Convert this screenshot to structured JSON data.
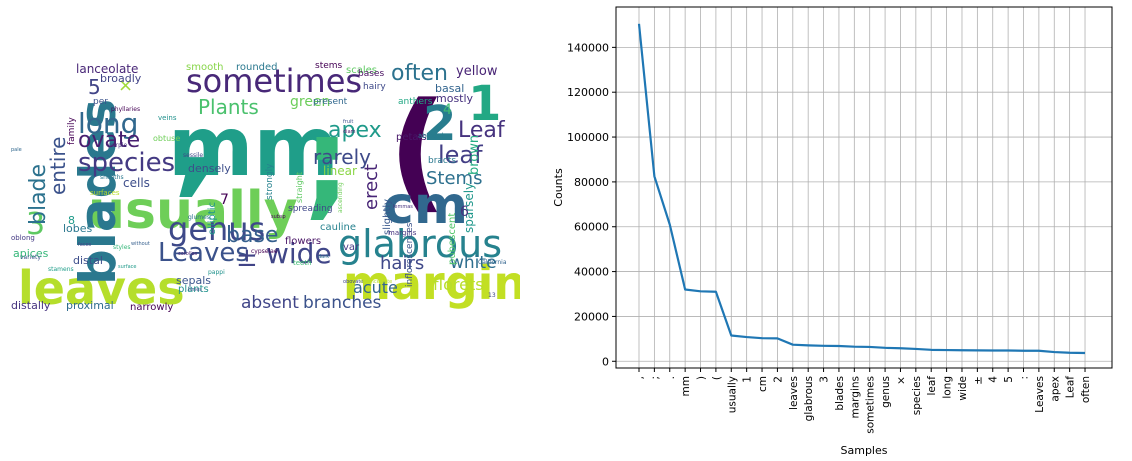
{
  "wordcloud": {
    "words": [
      {
        "text": ",",
        "color": "#1fa088"
      },
      {
        "text": "mm",
        "color": "#1f9e89"
      },
      {
        "text": ";",
        "color": "#35b779"
      },
      {
        "text": "(",
        "color": "#440154"
      },
      {
        "text": "usually",
        "color": "#6ece58"
      },
      {
        "text": "cm",
        "color": "#31688e"
      },
      {
        "text": "leaves",
        "color": "#b5de2b"
      },
      {
        "text": "margins",
        "color": "#c2df23"
      },
      {
        "text": "glabrous",
        "color": "#26828e"
      },
      {
        "text": "blades",
        "color": "#2a788e"
      },
      {
        "text": "sometimes",
        "color": "#482878"
      },
      {
        "text": "genus",
        "color": "#3e4989"
      },
      {
        "text": "2",
        "color": "#287d8e"
      },
      {
        "text": "1",
        "color": "#22a884"
      },
      {
        "text": "species",
        "color": "#443a83"
      },
      {
        "text": "Leaves",
        "color": "#3b528b"
      },
      {
        "text": "wide",
        "color": "#404688"
      },
      {
        "text": "often",
        "color": "#2c728e"
      },
      {
        "text": "long",
        "color": "#31688e"
      },
      {
        "text": "3",
        "color": "#5ec962"
      },
      {
        "text": "apex",
        "color": "#1f9a8a"
      },
      {
        "text": "leaf",
        "color": "#433e85"
      },
      {
        "text": "Leaf",
        "color": "#46327e"
      },
      {
        "text": "±",
        "color": "#414487"
      },
      {
        "text": "rarely",
        "color": "#3e4a89"
      },
      {
        "text": "base",
        "color": "#355f8d"
      },
      {
        "text": "Stems",
        "color": "#2d708e"
      },
      {
        "text": "ovate",
        "color": "#481f70"
      },
      {
        "text": "Plants",
        "color": "#4ac16d"
      },
      {
        "text": "entire",
        "color": "#3b528b"
      },
      {
        "text": "blade",
        "color": "#2c728e"
      },
      {
        "text": "erect",
        "color": "#482576"
      },
      {
        "text": "hairs",
        "color": "#3f4889"
      },
      {
        "text": "white",
        "color": "#2e6e8e"
      },
      {
        "text": "absent",
        "color": "#404588"
      },
      {
        "text": "branches",
        "color": "#3b528b"
      },
      {
        "text": "acute",
        "color": "#32658e"
      },
      {
        "text": "florets",
        "color": "#b8de29"
      },
      {
        "text": "green",
        "color": "#6ccd5a"
      },
      {
        "text": "×",
        "color": "#a0da39"
      },
      {
        "text": "5",
        "color": "#414487"
      },
      {
        "text": "4",
        "color": "#3fbc73"
      },
      {
        "text": "yellow",
        "color": "#482475"
      },
      {
        "text": "brown",
        "color": "#25ac82"
      },
      {
        "text": "lanceolate",
        "color": "#482677"
      },
      {
        "text": "cells",
        "color": "#3d4d8a"
      },
      {
        "text": "lobes",
        "color": "#2a778e"
      },
      {
        "text": "distal",
        "color": "#3d4e8a"
      },
      {
        "text": "apices",
        "color": "#35b779"
      },
      {
        "text": "sepals",
        "color": "#3a548c"
      },
      {
        "text": "proximal",
        "color": "#2f6c8e"
      },
      {
        "text": "distally",
        "color": "#46337f"
      },
      {
        "text": "narrowly",
        "color": "#440154"
      },
      {
        "text": "flowers",
        "color": "#471164"
      },
      {
        "text": "cauline",
        "color": "#26818e"
      },
      {
        "text": "var",
        "color": "#443983"
      },
      {
        "text": "mostly",
        "color": "#46307e"
      },
      {
        "text": "basal",
        "color": "#32648e"
      },
      {
        "text": "densely",
        "color": "#3d4e8a"
      },
      {
        "text": "broadly",
        "color": "#414487"
      },
      {
        "text": "smooth",
        "color": "#87d549"
      },
      {
        "text": "rounded",
        "color": "#2a788e"
      },
      {
        "text": "scales",
        "color": "#5ec962"
      },
      {
        "text": "stems",
        "color": "#440154"
      },
      {
        "text": "sparsely",
        "color": "#1f978b"
      },
      {
        "text": "pubescent",
        "color": "#52c569"
      },
      {
        "text": "slightly",
        "color": "#38588c"
      },
      {
        "text": "elliptic",
        "color": "#1f968b"
      },
      {
        "text": "linear",
        "color": "#8bd646"
      },
      {
        "text": "plants",
        "color": "#20928c"
      },
      {
        "text": "7",
        "color": "#440154"
      },
      {
        "text": "8",
        "color": "#1e9b8a"
      },
      {
        "text": "6",
        "color": "#46337f"
      },
      {
        "text": "inflorescences",
        "color": "#3b528b"
      },
      {
        "text": "petals",
        "color": "#48186a"
      },
      {
        "text": "bracts",
        "color": "#2a788e"
      },
      {
        "text": "anthers",
        "color": "#22a884"
      },
      {
        "text": "hairy",
        "color": "#3e4989"
      },
      {
        "text": "present",
        "color": "#31688e"
      },
      {
        "text": "bases",
        "color": "#470d60"
      },
      {
        "text": "per",
        "color": "#3b528b"
      },
      {
        "text": "family",
        "color": "#440154"
      },
      {
        "text": "spreading",
        "color": "#3f4788"
      },
      {
        "text": "strongly",
        "color": "#26828e"
      },
      {
        "text": "abaxial",
        "color": "#287d8e"
      },
      {
        "text": "straight",
        "color": "#5ec962"
      },
      {
        "text": "obtuse",
        "color": "#6ece58"
      },
      {
        "text": "veins",
        "color": "#21918c"
      },
      {
        "text": "margins",
        "color": "#46337f"
      },
      {
        "text": "teeth",
        "color": "#3fbc73"
      },
      {
        "text": "surfaces",
        "color": "#b5de2b"
      },
      {
        "text": "oblong",
        "color": "#443983"
      },
      {
        "text": "cypselae",
        "color": "#440154"
      },
      {
        "text": "glumes",
        "color": "#2c728e"
      },
      {
        "text": "variety",
        "color": "#3b528b"
      },
      {
        "text": "styles",
        "color": "#35b779"
      },
      {
        "text": "stamens",
        "color": "#1f9e89"
      },
      {
        "text": "California",
        "color": "#32648e"
      },
      {
        "text": "ascending",
        "color": "#6ece58"
      },
      {
        "text": "pappi",
        "color": "#20928c"
      },
      {
        "text": "phyllaries",
        "color": "#440154"
      },
      {
        "text": "sessile",
        "color": "#3e4989"
      },
      {
        "text": "purple",
        "color": "#46327e"
      },
      {
        "text": "sheaths",
        "color": "#2a788e"
      },
      {
        "text": "subsp",
        "color": "#440154"
      },
      {
        "text": "fruit",
        "color": "#3b528b"
      },
      {
        "text": "diam",
        "color": "#471164"
      },
      {
        "text": "pale",
        "color": "#31688e"
      },
      {
        "text": "faces",
        "color": "#414487"
      },
      {
        "text": "obovate",
        "color": "#3e4989"
      },
      {
        "text": "oblanceolate",
        "color": "#b8de29"
      },
      {
        "text": "corollas",
        "color": "#482576"
      },
      {
        "text": "13",
        "color": "#404688"
      },
      {
        "text": "lemmas",
        "color": "#46337f"
      },
      {
        "text": "times",
        "color": "#3d4d8a"
      },
      {
        "text": "dark",
        "color": "#2d708e"
      },
      {
        "text": "without",
        "color": "#355f8d"
      },
      {
        "text": "surface",
        "color": "#1f9a8a"
      }
    ]
  },
  "chart_data": {
    "type": "line",
    "xlabel": "Samples",
    "ylabel": "Counts",
    "categories": [
      ",",
      ";",
      ".",
      "mm",
      ")",
      "(",
      "usually",
      "1",
      "cm",
      "2",
      "leaves",
      "glabrous",
      "3",
      "blades",
      "margins",
      "sometimes",
      "genus",
      "×",
      "species",
      "leaf",
      "long",
      "wide",
      "±",
      "4",
      "5",
      ":",
      "Leaves",
      "apex",
      "Leaf",
      "often"
    ],
    "values": [
      150500,
      82500,
      61000,
      32000,
      31200,
      31000,
      11500,
      10800,
      10300,
      10200,
      7400,
      7100,
      6900,
      6800,
      6500,
      6400,
      6000,
      5800,
      5500,
      5100,
      5000,
      4900,
      4850,
      4800,
      4800,
      4700,
      4700,
      4100,
      3800,
      3700
    ],
    "yticks": [
      0,
      20000,
      40000,
      60000,
      80000,
      100000,
      120000,
      140000
    ],
    "ylim": [
      -3000,
      158000
    ],
    "grid": true,
    "line_color": "#1f77b4"
  }
}
